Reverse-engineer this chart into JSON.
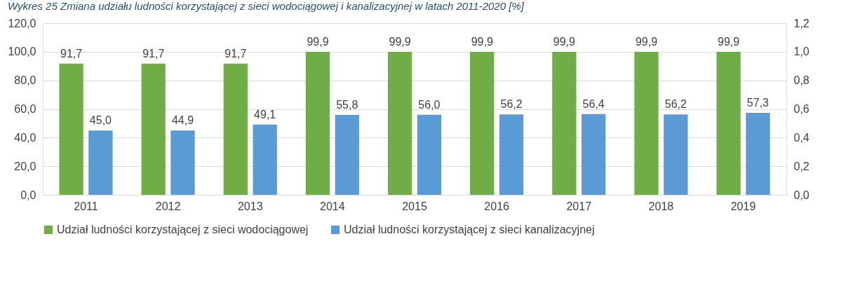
{
  "chart_data": {
    "type": "bar",
    "title": "Wykres 25 Zmiana udziału ludności korzystającej z sieci wodociągowej i kanalizacyjnej w latach 2011-2020 [%]",
    "categories": [
      "2011",
      "2012",
      "2013",
      "2014",
      "2015",
      "2016",
      "2017",
      "2018",
      "2019"
    ],
    "series": [
      {
        "name": "Udział ludności korzystającej z sieci wodociągowej",
        "color": "#70ad47",
        "values": [
          91.7,
          91.7,
          91.7,
          99.9,
          99.9,
          99.9,
          99.9,
          99.9,
          99.9
        ],
        "value_labels": [
          "91,7",
          "91,7",
          "91,7",
          "99,9",
          "99,9",
          "99,9",
          "99,9",
          "99,9",
          "99,9"
        ]
      },
      {
        "name": "Udział ludności korzystającej z sieci kanalizacyjnej",
        "color": "#5b9bd5",
        "values": [
          45.0,
          44.9,
          49.1,
          55.8,
          56.0,
          56.2,
          56.4,
          56.2,
          57.3
        ],
        "value_labels": [
          "45,0",
          "44,9",
          "49,1",
          "55,8",
          "56,0",
          "56,2",
          "56,4",
          "56,2",
          "57,3"
        ]
      }
    ],
    "ylim": [
      0,
      120
    ],
    "yticks": [
      {
        "value": 0,
        "label": "0,0"
      },
      {
        "value": 20,
        "label": "20,0"
      },
      {
        "value": 40,
        "label": "40,0"
      },
      {
        "value": 60,
        "label": "60,0"
      },
      {
        "value": 80,
        "label": "80,0"
      },
      {
        "value": 100,
        "label": "100,0"
      },
      {
        "value": 120,
        "label": "120,0"
      }
    ],
    "y2lim": [
      0,
      1.2
    ],
    "y2ticks": [
      {
        "value": 0,
        "label": "0,0"
      },
      {
        "value": 0.2,
        "label": "0,2"
      },
      {
        "value": 0.4,
        "label": "0,4"
      },
      {
        "value": 0.6,
        "label": "0,6"
      },
      {
        "value": 0.8,
        "label": "0,8"
      },
      {
        "value": 1.0,
        "label": "1,0"
      },
      {
        "value": 1.2,
        "label": "1,2"
      }
    ],
    "grid": "y",
    "legend": "bottom"
  }
}
